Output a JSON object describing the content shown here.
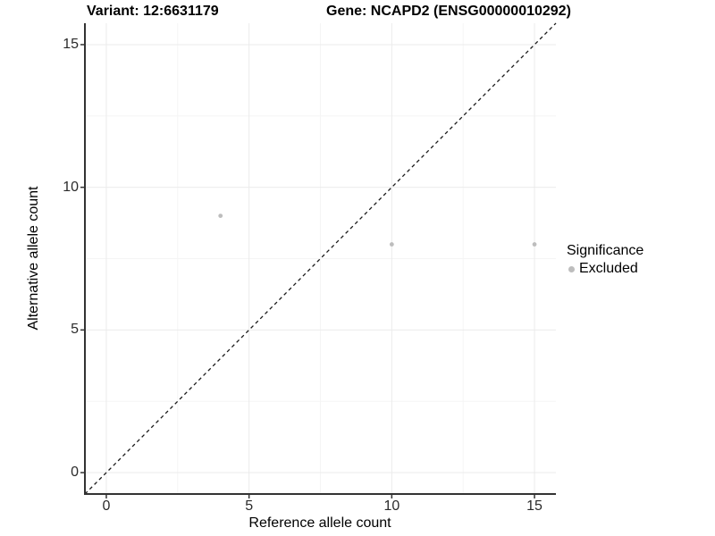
{
  "chart_data": {
    "type": "scatter",
    "title_left": "Variant: 12:6631179",
    "title_right": "Gene: NCAPD2 (ENSG00000010292)",
    "xlabel": "Reference allele count",
    "ylabel": "Alternative allele count",
    "x_ticks": [
      0,
      5,
      10,
      15
    ],
    "y_ticks": [
      0,
      5,
      10,
      15
    ],
    "xlim": [
      -0.75,
      15.75
    ],
    "ylim": [
      -0.75,
      15.75
    ],
    "grid": "major+minor",
    "legend_position": "right",
    "series": [
      {
        "name": "Excluded",
        "color": "#bdbdbd",
        "points": [
          {
            "x": 4,
            "y": 9
          },
          {
            "x": 10,
            "y": 8
          },
          {
            "x": 15,
            "y": 8
          }
        ]
      }
    ],
    "reference_line": {
      "type": "identity",
      "style": "dashed",
      "color": "#1a1a1a",
      "from": [
        -0.75,
        -0.75
      ],
      "to": [
        15.75,
        15.75
      ]
    },
    "legend": {
      "title": "Significance",
      "entries": [
        {
          "label": "Excluded",
          "color": "#bdbdbd"
        }
      ]
    },
    "colors": {
      "axis_line": "#333333",
      "tick_mark": "#333333",
      "tick_text": "#2b2b2b",
      "grid_major": "#ebebeb",
      "grid_minor": "#f5f5f5",
      "point": "#bdbdbd",
      "background": "#ffffff"
    }
  }
}
